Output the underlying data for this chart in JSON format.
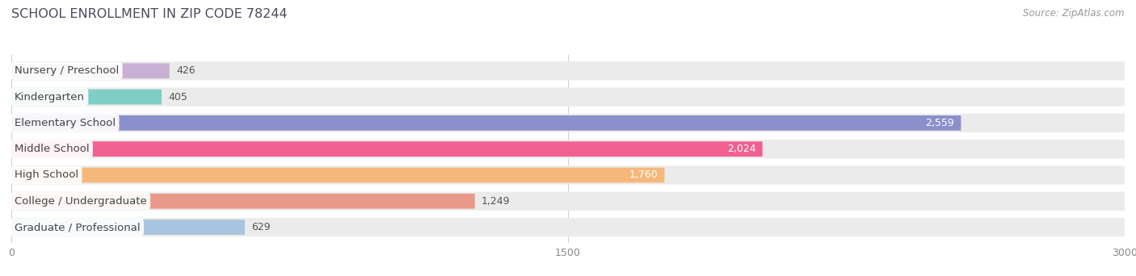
{
  "title": "SCHOOL ENROLLMENT IN ZIP CODE 78244",
  "source": "Source: ZipAtlas.com",
  "categories": [
    "Nursery / Preschool",
    "Kindergarten",
    "Elementary School",
    "Middle School",
    "High School",
    "College / Undergraduate",
    "Graduate / Professional"
  ],
  "values": [
    426,
    405,
    2559,
    2024,
    1760,
    1249,
    629
  ],
  "bar_colors": [
    "#c9afd4",
    "#7ecec5",
    "#8b8fcc",
    "#f06090",
    "#f5b87a",
    "#e8998a",
    "#a8c4e0"
  ],
  "track_bg_color": "#ebebeb",
  "xlim": [
    0,
    3000
  ],
  "xticks": [
    0,
    1500,
    3000
  ],
  "value_inside_threshold": 1600,
  "title_fontsize": 11.5,
  "title_color": "#4a4a5a",
  "source_fontsize": 8.5,
  "label_fontsize": 9.5,
  "value_fontsize": 9,
  "tick_fontsize": 9
}
